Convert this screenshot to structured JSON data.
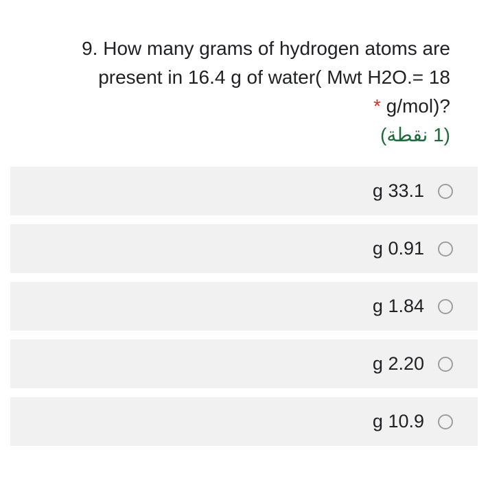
{
  "question": {
    "number": "9.",
    "line1": "How many grams of hydrogen atoms are",
    "line2": "present in 16.4 g of water( Mwt H2O.= 18",
    "line3": "g/mol)?",
    "required": "*",
    "points": "(1 نقطة)",
    "text_color": "#202124",
    "points_color": "#1e6b3a",
    "star_color": "#d93025",
    "font_size": 28
  },
  "options": [
    {
      "label": "g 33.1"
    },
    {
      "label": "g 0.91"
    },
    {
      "label": "g 1.84"
    },
    {
      "label": "g 2.20"
    },
    {
      "label": "g 10.9"
    }
  ],
  "styling": {
    "option_bg": "#f1f1f1",
    "radio_border": "#9e9e9e",
    "background": "#ffffff",
    "option_font_size": 27,
    "option_gap": 13,
    "option_padding": "20px 36px 20px 20px"
  }
}
